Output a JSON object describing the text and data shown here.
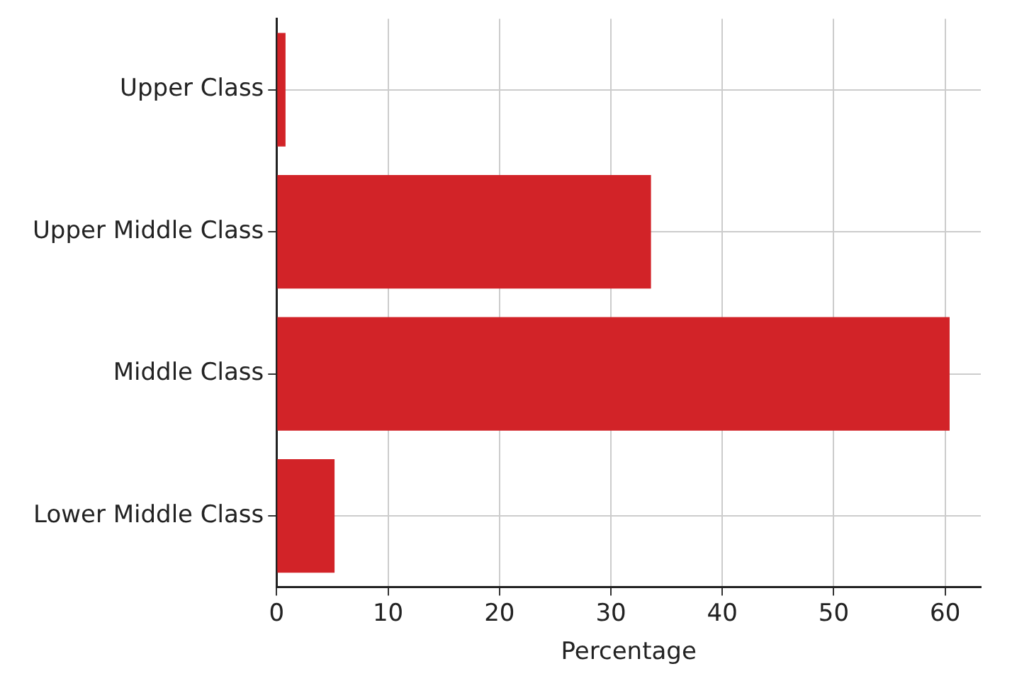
{
  "chart_data": {
    "type": "bar",
    "orientation": "horizontal",
    "xlabel": "Percentage",
    "categories": [
      "Upper Class",
      "Upper Middle Class",
      "Middle Class",
      "Lower Middle Class"
    ],
    "values": [
      0.8,
      33.6,
      60.4,
      5.2
    ],
    "color": "#d22328",
    "xlim": [
      0,
      63.2
    ],
    "xticks": [
      0,
      10,
      20,
      30,
      40,
      50,
      60
    ],
    "grid": true
  }
}
